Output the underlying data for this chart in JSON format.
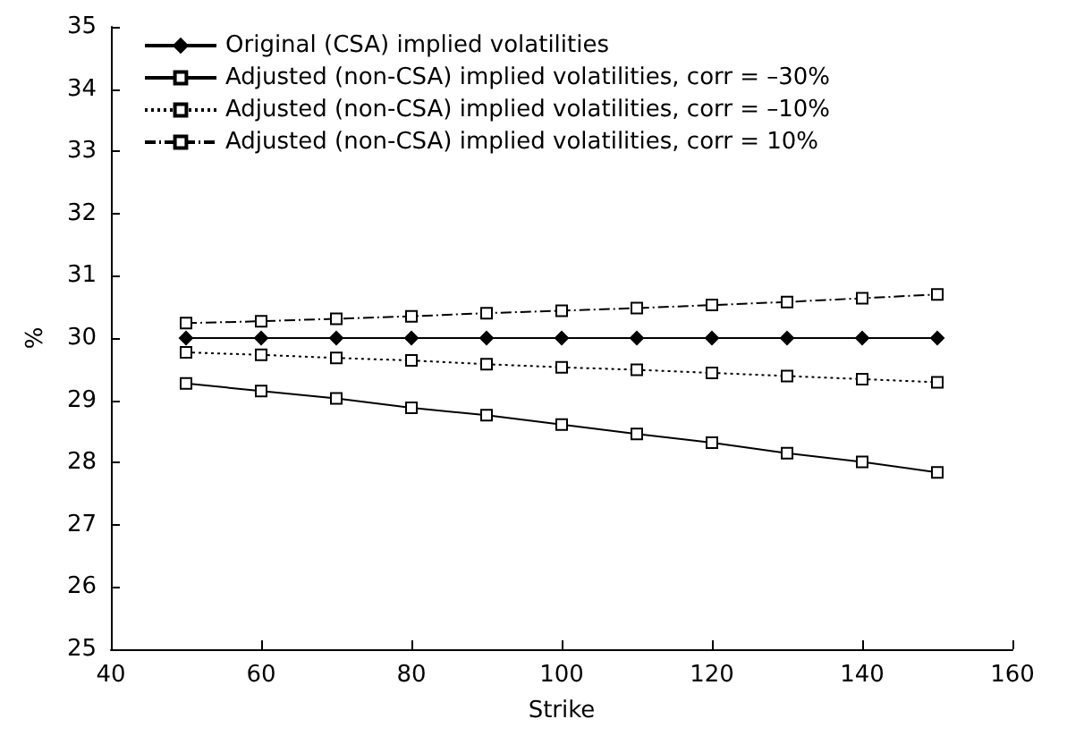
{
  "chart_data": {
    "type": "line",
    "xlabel": "Strike",
    "ylabel": "%",
    "x": [
      50,
      60,
      70,
      80,
      90,
      100,
      110,
      120,
      130,
      140,
      150
    ],
    "series": [
      {
        "name": "Original (CSA) implied volatilities",
        "color": "#000000",
        "marker": "diamond",
        "line_style": "solid",
        "values": [
          30,
          30,
          30,
          30,
          30,
          30,
          30,
          30,
          30,
          30,
          30
        ]
      },
      {
        "name": "Adjusted (non-CSA) implied volatilities, corr = –30%",
        "color": "#000000",
        "marker": "square",
        "line_style": "solid",
        "values": [
          29.27,
          29.15,
          29.03,
          28.88,
          28.76,
          28.61,
          28.46,
          28.32,
          28.15,
          28.01,
          27.84
        ]
      },
      {
        "name": "Adjusted (non-CSA) implied volatilities, corr = –10%",
        "color": "#000000",
        "marker": "square",
        "line_style": "dotted",
        "values": [
          29.77,
          29.73,
          29.68,
          29.64,
          29.58,
          29.53,
          29.49,
          29.44,
          29.39,
          29.34,
          29.29
        ]
      },
      {
        "name": "Adjusted (non-CSA) implied volatilities, corr = 10%",
        "color": "#000000",
        "marker": "square",
        "line_style": "dashed",
        "values": [
          30.24,
          30.27,
          30.31,
          30.35,
          30.4,
          30.44,
          30.48,
          30.53,
          30.58,
          30.64,
          30.7
        ]
      }
    ],
    "xlim": [
      40,
      160
    ],
    "xticks": [
      40,
      60,
      80,
      100,
      120,
      140,
      160
    ],
    "ylim": [
      25,
      35
    ],
    "yticks": [
      25,
      26,
      27,
      28,
      29,
      30,
      31,
      32,
      33,
      34,
      35
    ],
    "grid": false,
    "legend": "top left"
  }
}
